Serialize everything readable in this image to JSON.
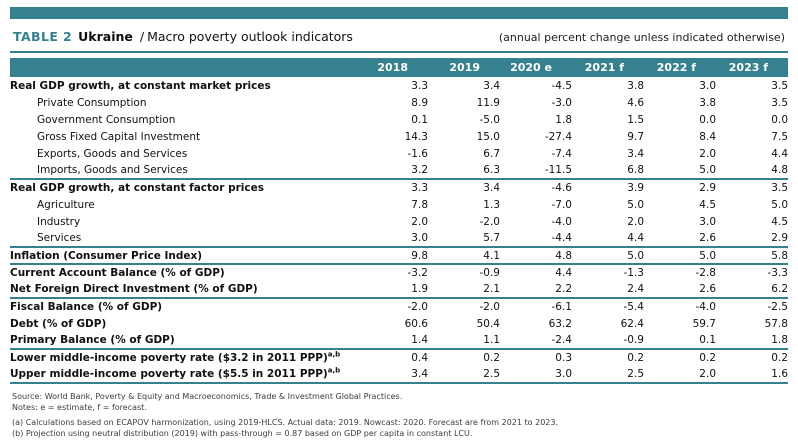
{
  "colors": {
    "accent": "#36818F"
  },
  "header": {
    "table_label": "TABLE 2",
    "country": "Ukraine",
    "slash": "/",
    "title": "Macro poverty outlook indicators",
    "unit_note": "(annual percent change unless indicated otherwise)"
  },
  "table": {
    "columns": [
      "2018",
      "2019",
      "2020 e",
      "2021 f",
      "2022 f",
      "2023 f"
    ],
    "groups": [
      {
        "rows": [
          {
            "label": "Real GDP growth, at constant market prices",
            "style": "bold",
            "values": [
              "3.3",
              "3.4",
              "-4.5",
              "3.8",
              "3.0",
              "3.5"
            ]
          },
          {
            "label": "Private Consumption",
            "style": "indent",
            "values": [
              "8.9",
              "11.9",
              "-3.0",
              "4.6",
              "3.8",
              "3.5"
            ]
          },
          {
            "label": "Government Consumption",
            "style": "indent",
            "values": [
              "0.1",
              "-5.0",
              "1.8",
              "1.5",
              "0.0",
              "0.0"
            ]
          },
          {
            "label": "Gross Fixed Capital Investment",
            "style": "indent",
            "values": [
              "14.3",
              "15.0",
              "-27.4",
              "9.7",
              "8.4",
              "7.5"
            ]
          },
          {
            "label": "Exports, Goods and Services",
            "style": "indent",
            "values": [
              "-1.6",
              "6.7",
              "-7.4",
              "3.4",
              "2.0",
              "4.4"
            ]
          },
          {
            "label": "Imports, Goods and Services",
            "style": "indent",
            "values": [
              "3.2",
              "6.3",
              "-11.5",
              "6.8",
              "5.0",
              "4.8"
            ]
          }
        ]
      },
      {
        "rows": [
          {
            "label": "Real GDP growth, at constant factor prices",
            "style": "bold",
            "values": [
              "3.3",
              "3.4",
              "-4.6",
              "3.9",
              "2.9",
              "3.5"
            ]
          },
          {
            "label": "Agriculture",
            "style": "indent",
            "values": [
              "7.8",
              "1.3",
              "-7.0",
              "5.0",
              "4.5",
              "5.0"
            ]
          },
          {
            "label": "Industry",
            "style": "indent",
            "values": [
              "2.0",
              "-2.0",
              "-4.0",
              "2.0",
              "3.0",
              "4.5"
            ]
          },
          {
            "label": "Services",
            "style": "indent",
            "values": [
              "3.0",
              "5.7",
              "-4.4",
              "4.4",
              "2.6",
              "2.9"
            ]
          }
        ]
      },
      {
        "rows": [
          {
            "label": "Inflation (Consumer Price Index)",
            "style": "bold",
            "values": [
              "9.8",
              "4.1",
              "4.8",
              "5.0",
              "5.0",
              "5.8"
            ]
          }
        ]
      },
      {
        "rows": [
          {
            "label": "Current Account Balance (% of GDP)",
            "style": "bold",
            "values": [
              "-3.2",
              "-0.9",
              "4.4",
              "-1.3",
              "-2.8",
              "-3.3"
            ]
          },
          {
            "label": "Net Foreign Direct Investment (% of GDP)",
            "style": "bold",
            "values": [
              "1.9",
              "2.1",
              "2.2",
              "2.4",
              "2.6",
              "6.2"
            ]
          }
        ]
      },
      {
        "rows": [
          {
            "label": "Fiscal Balance (% of GDP)",
            "style": "bold",
            "values": [
              "-2.0",
              "-2.0",
              "-6.1",
              "-5.4",
              "-4.0",
              "-2.5"
            ]
          },
          {
            "label": "Debt (% of GDP)",
            "style": "bold",
            "values": [
              "60.6",
              "50.4",
              "63.2",
              "62.4",
              "59.7",
              "57.8"
            ]
          },
          {
            "label": "Primary Balance (% of GDP)",
            "style": "bold",
            "values": [
              "1.4",
              "1.1",
              "-2.4",
              "-0.9",
              "0.1",
              "1.8"
            ]
          }
        ]
      },
      {
        "rows": [
          {
            "label": "Lower middle-income poverty rate ($3.2 in 2011 PPP)",
            "sup": "a,b",
            "style": "bold",
            "values": [
              "0.4",
              "0.2",
              "0.3",
              "0.2",
              "0.2",
              "0.2"
            ]
          },
          {
            "label": "Upper middle-income poverty rate ($5.5 in 2011 PPP)",
            "sup": "a,b",
            "style": "bold",
            "values": [
              "3.4",
              "2.5",
              "3.0",
              "2.5",
              "2.0",
              "1.6"
            ]
          }
        ]
      }
    ]
  },
  "footer": {
    "lines": [
      "Source: World Bank, Poverty & Equity and Macroeconomics, Trade & Investment Global Practices.",
      "Notes: e = estimate, f = forecast.",
      "(a) Calculations based on ECAPOV harmonization, using 2019-HLCS. Actual data: 2019. Nowcast: 2020. Forecast are from 2021 to 2023.",
      "(b) Projection using neutral distribution (2019) with pass-through = 0.87 based on GDP per capita in constant LCU."
    ]
  }
}
